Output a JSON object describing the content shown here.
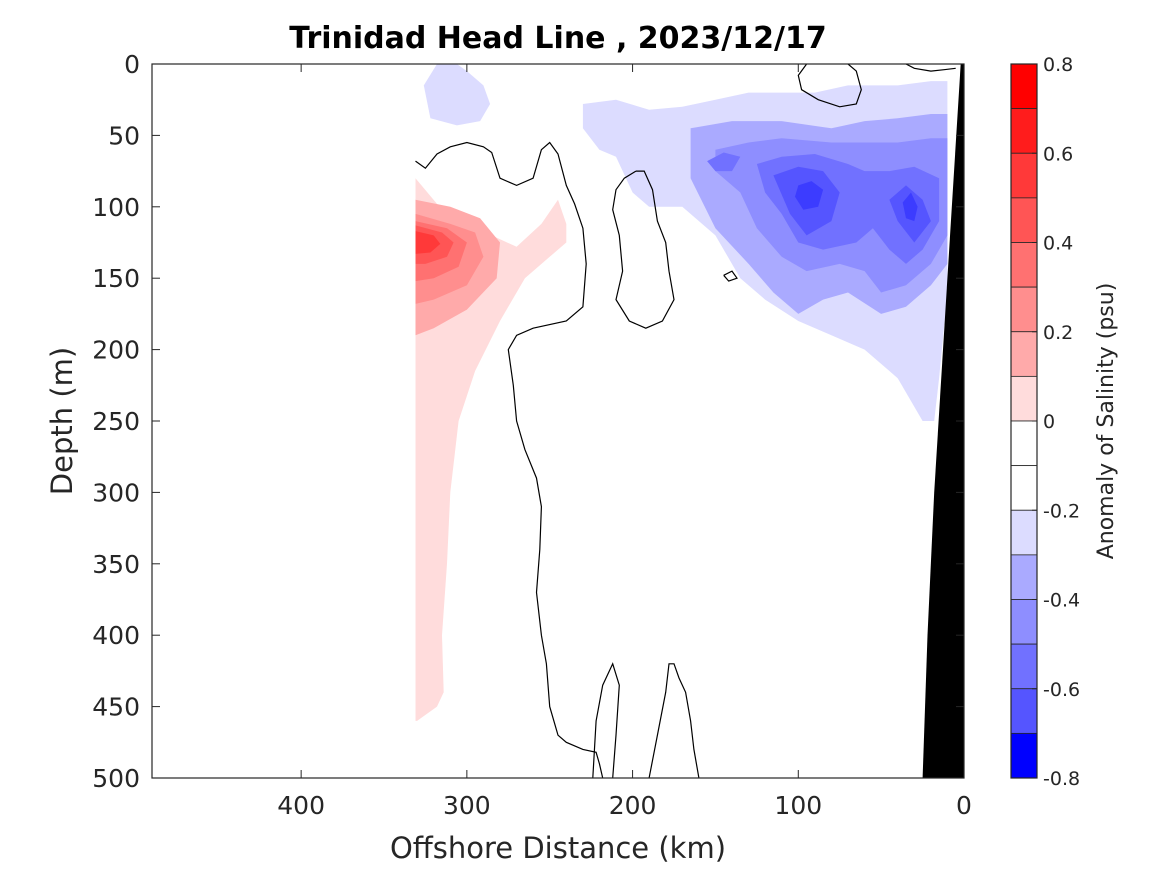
{
  "chart_data": {
    "type": "heatmap",
    "title": "Trinidad Head Line , 2023/12/17",
    "xlabel": "Offshore Distance (km)",
    "ylabel": "Depth (m)",
    "xlim": [
      490,
      0
    ],
    "ylim": [
      0,
      500
    ],
    "x_reversed": true,
    "y_reversed": true,
    "xticks": [
      400,
      300,
      200,
      100,
      0
    ],
    "yticks": [
      0,
      50,
      100,
      150,
      200,
      250,
      300,
      350,
      400,
      450,
      500
    ],
    "colorbar": {
      "label": "Anomaly of Salinity (psu)",
      "ticks": [
        0.8,
        0.6,
        0.4,
        0.2,
        0,
        -0.2,
        -0.4,
        -0.6,
        -0.8
      ],
      "tick_labels": [
        "0.8",
        "0.6",
        "0.4",
        "0.2",
        "0",
        "-0.2",
        "-0.4",
        "-0.6",
        "-0.8"
      ],
      "levels": [
        {
          "min": 0.7,
          "max": 0.8,
          "color": "#ff0000"
        },
        {
          "min": 0.6,
          "max": 0.7,
          "color": "#ff1c1c"
        },
        {
          "min": 0.5,
          "max": 0.6,
          "color": "#ff3939"
        },
        {
          "min": 0.4,
          "max": 0.5,
          "color": "#ff5555"
        },
        {
          "min": 0.3,
          "max": 0.4,
          "color": "#ff7171"
        },
        {
          "min": 0.2,
          "max": 0.3,
          "color": "#ff8e8e"
        },
        {
          "min": 0.1,
          "max": 0.2,
          "color": "#ffaaaa"
        },
        {
          "min": 0.0,
          "max": 0.1,
          "color": "#ffdcdc"
        },
        {
          "min": -0.1,
          "max": 0.0,
          "color": "#ffffff"
        },
        {
          "min": -0.2,
          "max": -0.1,
          "color": "#ffffff"
        },
        {
          "min": -0.3,
          "max": -0.2,
          "color": "#dcdcff"
        },
        {
          "min": -0.4,
          "max": -0.3,
          "color": "#aaaaff"
        },
        {
          "min": -0.5,
          "max": -0.4,
          "color": "#8e8eff"
        },
        {
          "min": -0.6,
          "max": -0.5,
          "color": "#7171ff"
        },
        {
          "min": -0.7,
          "max": -0.6,
          "color": "#5555ff"
        },
        {
          "min": -0.8,
          "max": -0.7,
          "color": "#0000ff"
        }
      ]
    },
    "regions": [
      {
        "name": "positive-anomaly-0-0.1",
        "level": 0.1,
        "color": "#ffdcdc",
        "outline": [
          [
            331,
            80
          ],
          [
            318,
            98
          ],
          [
            300,
            112
          ],
          [
            285,
            120
          ],
          [
            270,
            128
          ],
          [
            255,
            112
          ],
          [
            245,
            95
          ],
          [
            240,
            112
          ],
          [
            240,
            125
          ],
          [
            250,
            135
          ],
          [
            265,
            150
          ],
          [
            280,
            180
          ],
          [
            295,
            215
          ],
          [
            305,
            250
          ],
          [
            310,
            300
          ],
          [
            312,
            350
          ],
          [
            315,
            400
          ],
          [
            314,
            440
          ],
          [
            318,
            450
          ],
          [
            330,
            460
          ],
          [
            331,
            460
          ]
        ]
      },
      {
        "name": "positive-anomaly-0.1-0.2",
        "level": 0.2,
        "color": "#ffaaaa",
        "outline": [
          [
            331,
            95
          ],
          [
            310,
            100
          ],
          [
            292,
            108
          ],
          [
            280,
            125
          ],
          [
            282,
            150
          ],
          [
            300,
            172
          ],
          [
            320,
            185
          ],
          [
            331,
            190
          ]
        ]
      },
      {
        "name": "positive-anomaly-0.2-0.3",
        "level": 0.3,
        "color": "#ff8e8e",
        "outline": [
          [
            331,
            105
          ],
          [
            310,
            112
          ],
          [
            295,
            118
          ],
          [
            290,
            135
          ],
          [
            300,
            155
          ],
          [
            320,
            165
          ],
          [
            331,
            168
          ]
        ]
      },
      {
        "name": "positive-anomaly-0.3-0.4",
        "level": 0.4,
        "color": "#ff7171",
        "outline": [
          [
            331,
            110
          ],
          [
            312,
            115
          ],
          [
            300,
            125
          ],
          [
            305,
            142
          ],
          [
            320,
            150
          ],
          [
            331,
            152
          ]
        ]
      },
      {
        "name": "positive-anomaly-0.4-0.5",
        "level": 0.5,
        "color": "#ff5555",
        "outline": [
          [
            331,
            113
          ],
          [
            315,
            118
          ],
          [
            308,
            125
          ],
          [
            312,
            135
          ],
          [
            325,
            140
          ],
          [
            331,
            140
          ]
        ]
      },
      {
        "name": "positive-anomaly-0.5-0.6",
        "level": 0.6,
        "color": "#ff3939",
        "outline": [
          [
            331,
            117
          ],
          [
            320,
            120
          ],
          [
            316,
            126
          ],
          [
            322,
            132
          ],
          [
            331,
            133
          ]
        ]
      },
      {
        "name": "negative-anomaly-0.1-0.2-surface",
        "level": -0.2,
        "color": "#dcdcff",
        "outline": [
          [
            306,
            0
          ],
          [
            318,
            0
          ],
          [
            326,
            15
          ],
          [
            322,
            38
          ],
          [
            306,
            43
          ],
          [
            292,
            40
          ],
          [
            286,
            28
          ],
          [
            290,
            15
          ],
          [
            300,
            5
          ]
        ]
      },
      {
        "name": "negative-anomaly-0.1-0.2-main",
        "level": -0.2,
        "color": "#dcdcff",
        "outline": [
          [
            230,
            28
          ],
          [
            210,
            25
          ],
          [
            190,
            32
          ],
          [
            170,
            30
          ],
          [
            150,
            25
          ],
          [
            130,
            20
          ],
          [
            110,
            20
          ],
          [
            90,
            20
          ],
          [
            70,
            15
          ],
          [
            55,
            15
          ],
          [
            40,
            15
          ],
          [
            20,
            12
          ],
          [
            10,
            12
          ],
          [
            10,
            160
          ],
          [
            15,
            220
          ],
          [
            18,
            250
          ],
          [
            25,
            250
          ],
          [
            40,
            220
          ],
          [
            60,
            200
          ],
          [
            80,
            190
          ],
          [
            100,
            180
          ],
          [
            120,
            165
          ],
          [
            135,
            150
          ],
          [
            150,
            120
          ],
          [
            170,
            100
          ],
          [
            190,
            100
          ],
          [
            200,
            90
          ],
          [
            210,
            65
          ],
          [
            220,
            60
          ],
          [
            230,
            45
          ]
        ]
      },
      {
        "name": "negative-anomaly-0.2-0.3",
        "level": -0.3,
        "color": "#aaaaff",
        "outline": [
          [
            165,
            45
          ],
          [
            140,
            40
          ],
          [
            110,
            40
          ],
          [
            80,
            45
          ],
          [
            60,
            40
          ],
          [
            40,
            38
          ],
          [
            20,
            35
          ],
          [
            10,
            35
          ],
          [
            10,
            140
          ],
          [
            20,
            155
          ],
          [
            35,
            170
          ],
          [
            50,
            175
          ],
          [
            70,
            160
          ],
          [
            85,
            165
          ],
          [
            100,
            175
          ],
          [
            115,
            160
          ],
          [
            130,
            140
          ],
          [
            150,
            115
          ],
          [
            165,
            80
          ]
        ]
      },
      {
        "name": "negative-anomaly-0.3-0.4",
        "level": -0.4,
        "color": "#8e8eff",
        "outline": [
          [
            150,
            60
          ],
          [
            130,
            55
          ],
          [
            110,
            52
          ],
          [
            80,
            55
          ],
          [
            60,
            55
          ],
          [
            40,
            55
          ],
          [
            20,
            52
          ],
          [
            10,
            52
          ],
          [
            10,
            120
          ],
          [
            20,
            140
          ],
          [
            35,
            155
          ],
          [
            50,
            160
          ],
          [
            60,
            145
          ],
          [
            75,
            140
          ],
          [
            95,
            145
          ],
          [
            110,
            135
          ],
          [
            125,
            115
          ],
          [
            135,
            90
          ],
          [
            150,
            75
          ]
        ]
      },
      {
        "name": "negative-anomaly-0.4-0.5",
        "level": -0.5,
        "color": "#7171ff",
        "outline": [
          [
            145,
            62
          ],
          [
            135,
            65
          ],
          [
            140,
            75
          ],
          [
            150,
            75
          ],
          [
            155,
            68
          ]
        ]
      },
      {
        "name": "negative-anomaly-0.4-0.5-b",
        "level": -0.5,
        "color": "#7171ff",
        "outline": [
          [
            125,
            70
          ],
          [
            110,
            65
          ],
          [
            90,
            63
          ],
          [
            70,
            70
          ],
          [
            60,
            75
          ],
          [
            45,
            75
          ],
          [
            30,
            72
          ],
          [
            15,
            80
          ],
          [
            15,
            110
          ],
          [
            25,
            130
          ],
          [
            35,
            140
          ],
          [
            45,
            130
          ],
          [
            55,
            115
          ],
          [
            65,
            125
          ],
          [
            85,
            130
          ],
          [
            100,
            125
          ],
          [
            110,
            105
          ],
          [
            120,
            90
          ]
        ]
      },
      {
        "name": "negative-anomaly-0.5-0.6",
        "level": -0.6,
        "color": "#5555ff",
        "outline": [
          [
            115,
            78
          ],
          [
            100,
            72
          ],
          [
            85,
            75
          ],
          [
            75,
            90
          ],
          [
            80,
            110
          ],
          [
            95,
            120
          ],
          [
            105,
            105
          ]
        ]
      },
      {
        "name": "negative-anomaly-0.5-0.6-b",
        "level": -0.6,
        "color": "#5555ff",
        "outline": [
          [
            35,
            85
          ],
          [
            25,
            95
          ],
          [
            20,
            110
          ],
          [
            30,
            125
          ],
          [
            40,
            110
          ],
          [
            45,
            95
          ]
        ]
      },
      {
        "name": "negative-anomaly-0.6-0.7",
        "level": -0.7,
        "color": "#3c3cff",
        "outline": [
          [
            100,
            85
          ],
          [
            92,
            82
          ],
          [
            85,
            88
          ],
          [
            88,
            100
          ],
          [
            97,
            102
          ],
          [
            102,
            93
          ]
        ]
      },
      {
        "name": "negative-anomaly-0.6-0.7-b",
        "level": -0.7,
        "color": "#3c3cff",
        "outline": [
          [
            32,
            90
          ],
          [
            28,
            100
          ],
          [
            30,
            110
          ],
          [
            35,
            108
          ],
          [
            37,
            97
          ]
        ]
      }
    ],
    "zero_contours": [
      [
        [
          331,
          68
        ],
        [
          325,
          73
        ],
        [
          318,
          63
        ],
        [
          310,
          58
        ],
        [
          300,
          55
        ],
        [
          290,
          58
        ],
        [
          285,
          62
        ],
        [
          280,
          80
        ],
        [
          270,
          85
        ],
        [
          260,
          80
        ],
        [
          255,
          60
        ],
        [
          250,
          55
        ],
        [
          245,
          63
        ],
        [
          240,
          85
        ],
        [
          235,
          98
        ],
        [
          230,
          115
        ],
        [
          228,
          140
        ],
        [
          230,
          170
        ],
        [
          240,
          180
        ],
        [
          260,
          185
        ],
        [
          270,
          190
        ],
        [
          275,
          200
        ],
        [
          272,
          225
        ],
        [
          270,
          250
        ],
        [
          265,
          270
        ],
        [
          258,
          290
        ],
        [
          255,
          310
        ],
        [
          256,
          340
        ],
        [
          258,
          370
        ],
        [
          255,
          400
        ],
        [
          252,
          420
        ],
        [
          250,
          450
        ],
        [
          245,
          470
        ],
        [
          240,
          475
        ],
        [
          230,
          480
        ],
        [
          222,
          482
        ],
        [
          220,
          490
        ],
        [
          218,
          500
        ]
      ],
      [
        [
          212,
          500
        ],
        [
          210,
          470
        ],
        [
          208,
          435
        ],
        [
          212,
          420
        ],
        [
          218,
          435
        ],
        [
          222,
          460
        ],
        [
          224,
          500
        ]
      ],
      [
        [
          190,
          500
        ],
        [
          185,
          470
        ],
        [
          180,
          440
        ],
        [
          178,
          420
        ],
        [
          175,
          420
        ],
        [
          172,
          430
        ],
        [
          168,
          440
        ],
        [
          165,
          460
        ],
        [
          163,
          480
        ],
        [
          160,
          500
        ]
      ],
      [
        [
          198,
          75
        ],
        [
          205,
          80
        ],
        [
          210,
          88
        ],
        [
          212,
          102
        ],
        [
          208,
          120
        ],
        [
          206,
          145
        ],
        [
          210,
          165
        ],
        [
          202,
          180
        ],
        [
          192,
          185
        ],
        [
          182,
          180
        ],
        [
          175,
          165
        ],
        [
          178,
          145
        ],
        [
          180,
          125
        ],
        [
          185,
          110
        ],
        [
          188,
          88
        ],
        [
          193,
          75
        ],
        [
          198,
          75
        ]
      ],
      [
        [
          145,
          148
        ],
        [
          140,
          145
        ],
        [
          137,
          150
        ],
        [
          142,
          152
        ],
        [
          145,
          148
        ]
      ],
      [
        [
          95,
          0
        ],
        [
          100,
          8
        ],
        [
          98,
          18
        ],
        [
          88,
          25
        ],
        [
          75,
          30
        ],
        [
          65,
          28
        ],
        [
          62,
          18
        ],
        [
          65,
          5
        ],
        [
          70,
          0
        ]
      ],
      [
        [
          35,
          0
        ],
        [
          30,
          3
        ],
        [
          20,
          5
        ],
        [
          12,
          4
        ],
        [
          5,
          3
        ]
      ]
    ],
    "land_mask": [
      [
        25,
        500
      ],
      [
        0,
        500
      ],
      [
        0,
        0
      ],
      [
        2,
        0
      ],
      [
        10,
        150
      ],
      [
        18,
        300
      ],
      [
        22,
        400
      ]
    ]
  }
}
